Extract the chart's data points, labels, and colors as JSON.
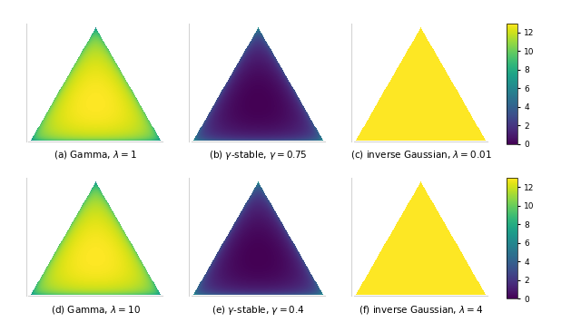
{
  "panels": [
    {
      "label": "(a) Gamma, $\\lambda = 1$",
      "type": "gamma",
      "param": 1.0,
      "row": 0,
      "col": 0
    },
    {
      "label": "(b) $\\gamma$-stable, $\\gamma = 0.75$",
      "type": "gamma_stable",
      "param": 0.75,
      "row": 0,
      "col": 1
    },
    {
      "label": "(c) inverse Gaussian, $\\lambda = 0.01$",
      "type": "inv_gauss",
      "param": 0.01,
      "row": 0,
      "col": 2
    },
    {
      "label": "(d) Gamma, $\\lambda = 10$",
      "type": "gamma",
      "param": 10.0,
      "row": 1,
      "col": 0
    },
    {
      "label": "(e) $\\gamma$-stable, $\\gamma = 0.4$",
      "type": "gamma_stable",
      "param": 0.4,
      "row": 1,
      "col": 1
    },
    {
      "label": "(f) inverse Gaussian, $\\lambda = 4$",
      "type": "inv_gauss",
      "param": 4.0,
      "row": 1,
      "col": 2
    }
  ],
  "colormap": "viridis",
  "vmin": 0,
  "vmax": 13,
  "colorbar_ticks": [
    0,
    2,
    4,
    6,
    8,
    10,
    12
  ],
  "figsize": [
    6.4,
    3.66
  ],
  "dpi": 100,
  "grid_n": 300,
  "bg_color": "#ffffff",
  "outside_color": "#ffffff",
  "label_fontsize": 7.5,
  "cb_tick_fontsize": 6.5
}
